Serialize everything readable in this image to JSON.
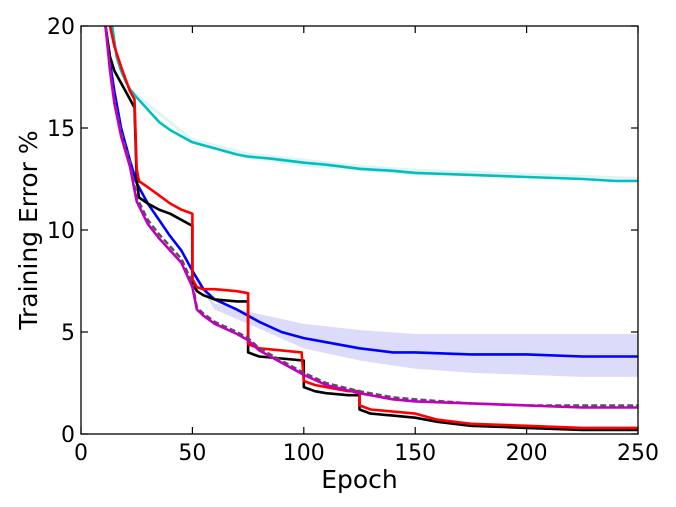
{
  "chart_data": {
    "type": "line",
    "title": "",
    "xlabel": "Epoch",
    "ylabel": "Training Error %",
    "xlim": [
      0,
      250
    ],
    "ylim": [
      0,
      20
    ],
    "xticks": [
      "0",
      "50",
      "100",
      "150",
      "200",
      "250"
    ],
    "yticks": [
      "0",
      "5",
      "10",
      "15",
      "20"
    ],
    "grid": false,
    "legend": "none",
    "bands": [
      {
        "series": "blue",
        "color": "#bfbff5",
        "lower": [
          [
            50,
            7.8
          ],
          [
            60,
            6.1
          ],
          [
            75,
            5.4
          ],
          [
            100,
            4.2
          ],
          [
            125,
            3.6
          ],
          [
            150,
            3.2
          ],
          [
            175,
            3.0
          ],
          [
            200,
            2.9
          ],
          [
            225,
            2.8
          ],
          [
            250,
            2.8
          ]
        ],
        "upper": [
          [
            50,
            7.9
          ],
          [
            60,
            6.4
          ],
          [
            75,
            6.0
          ],
          [
            100,
            5.4
          ],
          [
            125,
            5.1
          ],
          [
            150,
            4.9
          ],
          [
            175,
            4.9
          ],
          [
            200,
            4.9
          ],
          [
            225,
            4.9
          ],
          [
            250,
            4.9
          ]
        ]
      },
      {
        "series": "cyan",
        "color": "#c8eaea",
        "lower": [
          [
            25,
            16.5
          ],
          [
            50,
            14.3
          ],
          [
            75,
            13.5
          ],
          [
            100,
            13.1
          ],
          [
            125,
            12.9
          ],
          [
            150,
            12.7
          ],
          [
            200,
            12.6
          ],
          [
            250,
            12.4
          ]
        ],
        "upper": [
          [
            25,
            16.7
          ],
          [
            50,
            14.5
          ],
          [
            75,
            13.8
          ],
          [
            100,
            13.5
          ],
          [
            125,
            13.2
          ],
          [
            150,
            13.0
          ],
          [
            200,
            12.8
          ],
          [
            250,
            12.6
          ]
        ]
      }
    ],
    "series": [
      {
        "color": "#00bfbf",
        "points": [
          [
            14,
            20
          ],
          [
            16,
            18.5
          ],
          [
            18,
            17.8
          ],
          [
            20,
            17.3
          ],
          [
            22,
            16.9
          ],
          [
            25,
            16.5
          ],
          [
            30,
            15.9
          ],
          [
            35,
            15.3
          ],
          [
            40,
            14.9
          ],
          [
            45,
            14.6
          ],
          [
            50,
            14.3
          ],
          [
            60,
            14.0
          ],
          [
            70,
            13.7
          ],
          [
            75,
            13.6
          ],
          [
            85,
            13.5
          ],
          [
            100,
            13.3
          ],
          [
            110,
            13.2
          ],
          [
            125,
            13.0
          ],
          [
            140,
            12.9
          ],
          [
            150,
            12.8
          ],
          [
            175,
            12.7
          ],
          [
            200,
            12.6
          ],
          [
            225,
            12.5
          ],
          [
            240,
            12.4
          ],
          [
            250,
            12.4
          ]
        ]
      },
      {
        "color": "#0000ff",
        "points": [
          [
            11,
            20
          ],
          [
            13,
            18.2
          ],
          [
            15,
            16.8
          ],
          [
            18,
            15.0
          ],
          [
            22,
            13.4
          ],
          [
            25,
            12.3
          ],
          [
            30,
            11.3
          ],
          [
            35,
            10.5
          ],
          [
            40,
            9.7
          ],
          [
            45,
            9.0
          ],
          [
            50,
            8.0
          ],
          [
            55,
            7.1
          ],
          [
            60,
            6.6
          ],
          [
            70,
            6.1
          ],
          [
            75,
            5.8
          ],
          [
            80,
            5.5
          ],
          [
            90,
            5.0
          ],
          [
            100,
            4.7
          ],
          [
            110,
            4.5
          ],
          [
            125,
            4.2
          ],
          [
            140,
            4.0
          ],
          [
            150,
            4.0
          ],
          [
            175,
            3.9
          ],
          [
            200,
            3.9
          ],
          [
            225,
            3.8
          ],
          [
            250,
            3.8
          ]
        ]
      },
      {
        "color": "#000000",
        "points": [
          [
            11,
            20
          ],
          [
            13,
            18.5
          ],
          [
            15,
            17.8
          ],
          [
            20,
            16.8
          ],
          [
            24,
            16.0
          ],
          [
            25,
            12.5
          ],
          [
            26,
            11.6
          ],
          [
            30,
            11.3
          ],
          [
            35,
            11.0
          ],
          [
            40,
            10.8
          ],
          [
            45,
            10.5
          ],
          [
            50,
            10.2
          ],
          [
            50,
            7.5
          ],
          [
            52,
            7.0
          ],
          [
            55,
            6.8
          ],
          [
            60,
            6.6
          ],
          [
            70,
            6.5
          ],
          [
            75,
            6.5
          ],
          [
            75,
            4.0
          ],
          [
            80,
            3.8
          ],
          [
            90,
            3.7
          ],
          [
            100,
            3.6
          ],
          [
            100,
            2.3
          ],
          [
            105,
            2.1
          ],
          [
            110,
            2.0
          ],
          [
            120,
            1.9
          ],
          [
            125,
            1.9
          ],
          [
            125,
            1.2
          ],
          [
            130,
            1.0
          ],
          [
            140,
            0.9
          ],
          [
            150,
            0.8
          ],
          [
            160,
            0.6
          ],
          [
            175,
            0.4
          ],
          [
            200,
            0.3
          ],
          [
            225,
            0.2
          ],
          [
            250,
            0.2
          ]
        ]
      },
      {
        "color": "#ff0000",
        "points": [
          [
            13,
            20
          ],
          [
            15,
            19.0
          ],
          [
            18,
            18.0
          ],
          [
            22,
            16.8
          ],
          [
            24,
            16.4
          ],
          [
            25,
            13.0
          ],
          [
            26,
            12.4
          ],
          [
            30,
            12.1
          ],
          [
            35,
            11.7
          ],
          [
            40,
            11.3
          ],
          [
            45,
            11.0
          ],
          [
            50,
            10.8
          ],
          [
            50,
            7.6
          ],
          [
            52,
            7.2
          ],
          [
            55,
            7.1
          ],
          [
            60,
            7.1
          ],
          [
            70,
            7.0
          ],
          [
            75,
            6.9
          ],
          [
            75,
            4.4
          ],
          [
            80,
            4.2
          ],
          [
            90,
            4.1
          ],
          [
            99,
            4.0
          ],
          [
            100,
            2.6
          ],
          [
            105,
            2.4
          ],
          [
            110,
            2.3
          ],
          [
            120,
            2.1
          ],
          [
            125,
            2.1
          ],
          [
            125,
            1.4
          ],
          [
            130,
            1.2
          ],
          [
            140,
            1.1
          ],
          [
            150,
            1.0
          ],
          [
            160,
            0.7
          ],
          [
            175,
            0.5
          ],
          [
            200,
            0.4
          ],
          [
            225,
            0.3
          ],
          [
            250,
            0.3
          ]
        ]
      },
      {
        "color": "#555555",
        "dashed": true,
        "points": [
          [
            11,
            20
          ],
          [
            13,
            18.0
          ],
          [
            15,
            16.4
          ],
          [
            18,
            14.8
          ],
          [
            22,
            13.3
          ],
          [
            25,
            11.6
          ],
          [
            30,
            10.5
          ],
          [
            35,
            9.8
          ],
          [
            40,
            9.2
          ],
          [
            45,
            8.6
          ],
          [
            50,
            7.4
          ],
          [
            52,
            6.2
          ],
          [
            55,
            5.9
          ],
          [
            60,
            5.5
          ],
          [
            70,
            5.0
          ],
          [
            75,
            4.7
          ],
          [
            80,
            4.2
          ],
          [
            90,
            3.6
          ],
          [
            100,
            3.0
          ],
          [
            110,
            2.5
          ],
          [
            125,
            2.1
          ],
          [
            140,
            1.8
          ],
          [
            150,
            1.7
          ],
          [
            175,
            1.5
          ],
          [
            200,
            1.4
          ],
          [
            225,
            1.4
          ],
          [
            250,
            1.4
          ]
        ]
      },
      {
        "color": "#bf00bf",
        "points": [
          [
            11,
            20
          ],
          [
            13,
            17.8
          ],
          [
            15,
            16.2
          ],
          [
            18,
            14.6
          ],
          [
            22,
            13.1
          ],
          [
            25,
            11.4
          ],
          [
            30,
            10.3
          ],
          [
            35,
            9.6
          ],
          [
            40,
            9.0
          ],
          [
            45,
            8.4
          ],
          [
            50,
            7.2
          ],
          [
            52,
            6.1
          ],
          [
            55,
            5.8
          ],
          [
            60,
            5.4
          ],
          [
            70,
            4.9
          ],
          [
            75,
            4.6
          ],
          [
            80,
            4.1
          ],
          [
            90,
            3.5
          ],
          [
            100,
            2.9
          ],
          [
            110,
            2.4
          ],
          [
            125,
            2.0
          ],
          [
            140,
            1.7
          ],
          [
            150,
            1.6
          ],
          [
            175,
            1.5
          ],
          [
            200,
            1.4
          ],
          [
            225,
            1.3
          ],
          [
            250,
            1.3
          ]
        ]
      }
    ]
  }
}
